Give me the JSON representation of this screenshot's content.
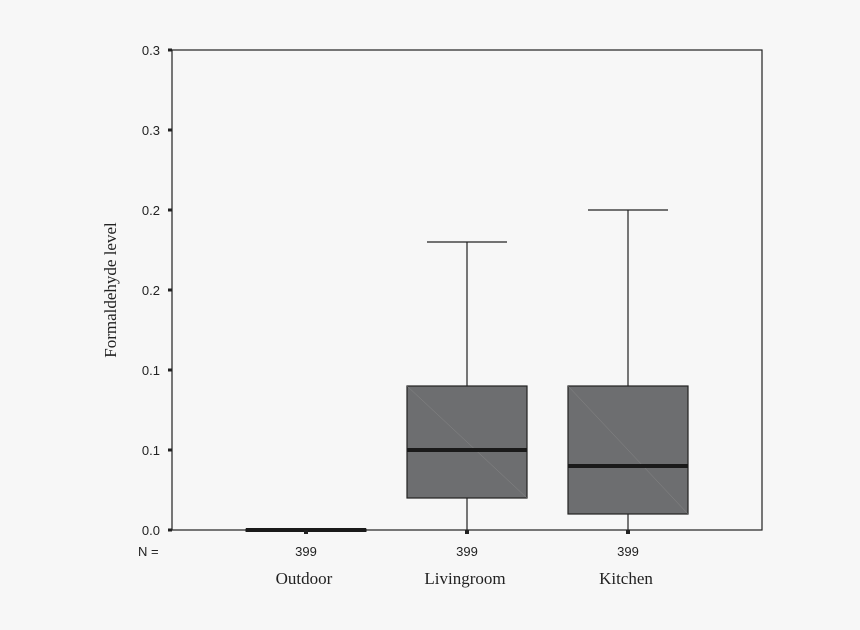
{
  "chart_data": {
    "type": "box",
    "title": "",
    "xlabel": "",
    "ylabel": "Formaldehyde level",
    "ylim": [
      0,
      0.3
    ],
    "y_ticks": [
      0,
      0.05,
      0.1,
      0.15,
      0.2,
      0.25,
      0.3
    ],
    "y_tick_labels": [
      "0.0",
      "0.1",
      "0.1",
      "0.2",
      "0.2",
      "0.3",
      "0.3"
    ],
    "n_label": "N =",
    "categories": [
      "Outdoor",
      "Livingroom",
      "Kitchen"
    ],
    "n": [
      "399",
      "399",
      "399"
    ],
    "boxes": [
      {
        "min": 0.0,
        "q1": 0.0,
        "median": 0.0,
        "q3": 0.0005,
        "max": 0.0005
      },
      {
        "min": 0.0,
        "q1": 0.02,
        "median": 0.05,
        "q3": 0.09,
        "max": 0.18
      },
      {
        "min": 0.0,
        "q1": 0.01,
        "median": 0.04,
        "q3": 0.09,
        "max": 0.2
      }
    ],
    "grid": false,
    "colors": {
      "box_fill": "#6d6e70",
      "line": "#222222",
      "background": "#f7f7f7"
    }
  }
}
